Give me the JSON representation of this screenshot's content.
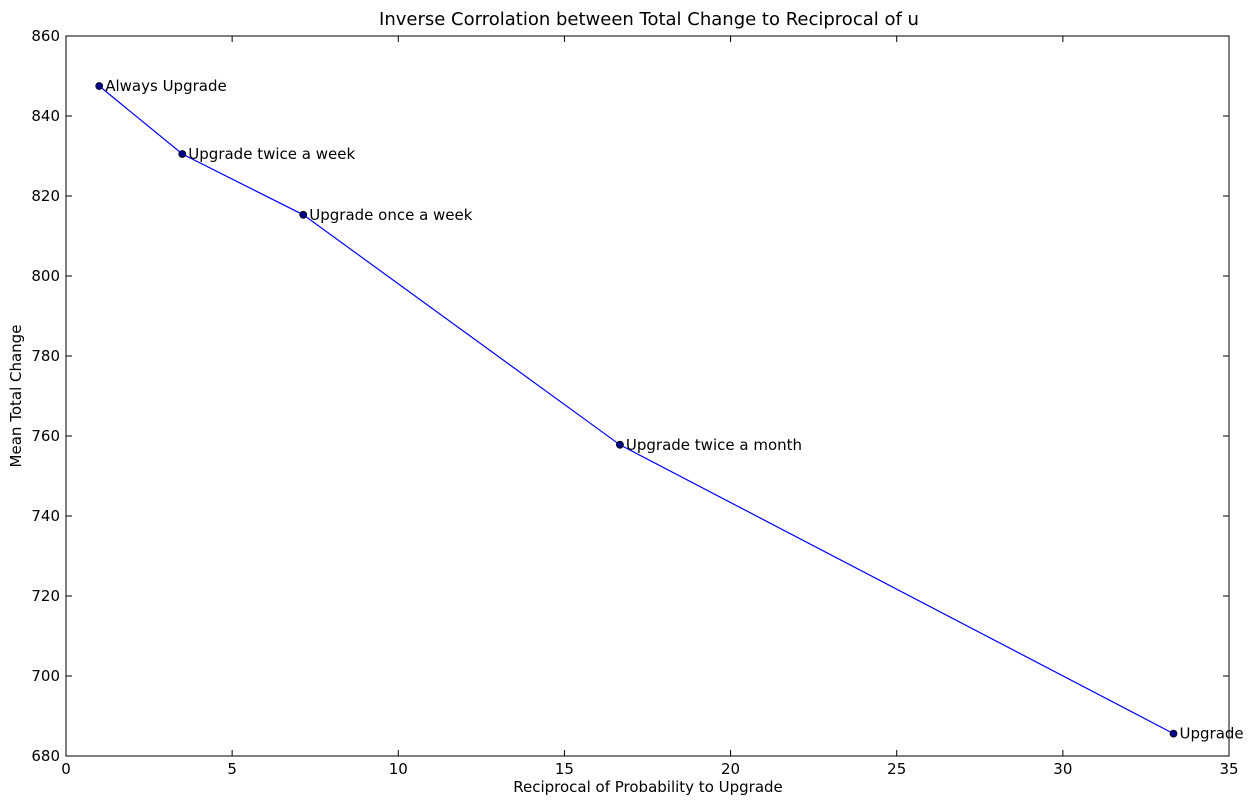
{
  "chart_data": {
    "type": "line",
    "title": "Inverse Corrolation between Total Change to Reciprocal of u",
    "xlabel": "Reciprocal of Probability to Upgrade",
    "ylabel": "Mean Total Change",
    "xlim": [
      0,
      35
    ],
    "ylim": [
      680,
      860
    ],
    "xticks": [
      0,
      5,
      10,
      15,
      20,
      25,
      30,
      35
    ],
    "yticks": [
      680,
      700,
      720,
      740,
      760,
      780,
      800,
      820,
      840,
      860
    ],
    "grid": false,
    "series": [
      {
        "x": [
          1,
          3.5,
          7.14,
          16.67,
          33.33
        ],
        "y": [
          847.5,
          830.5,
          815.3,
          757.8,
          685.6
        ],
        "labels": [
          "Always Upgrade",
          "Upgrade twice a week",
          "Upgrade once a week",
          "Upgrade twice a month",
          "Upgrade"
        ]
      }
    ],
    "colors": {
      "line": "#0000ff",
      "marker_fill": "#00008b",
      "axes": "#000000"
    }
  }
}
